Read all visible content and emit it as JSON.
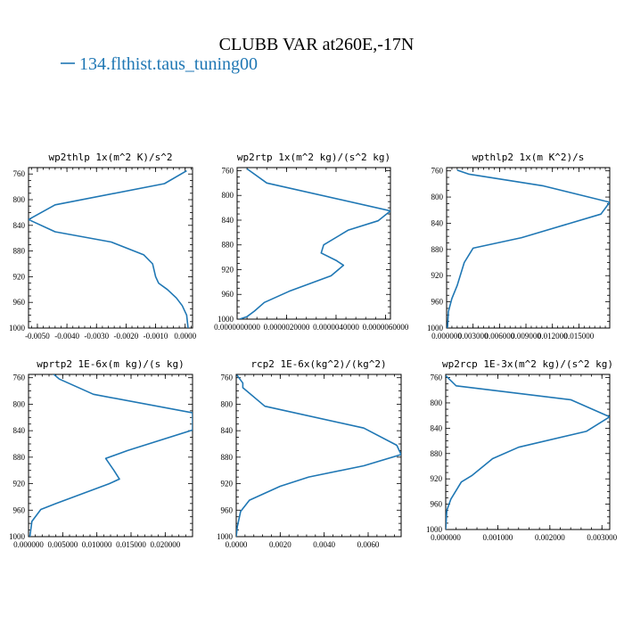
{
  "figure": {
    "title": "CLUBB VAR at260E,-17N",
    "legend_label": "134.flthist.taus_tuning00",
    "line_color": "#1f77b4"
  },
  "chart_data": [
    {
      "type": "line",
      "title": "wp2thlp  1x(m^2 K)/s^2",
      "xlim": [
        -0.0053,
        0.00025
      ],
      "ylim": [
        1000,
        750
      ],
      "xticks": [
        -0.005,
        -0.004,
        -0.003,
        -0.002,
        -0.001,
        0.0
      ],
      "xtick_labels": [
        "-0.0050",
        "-0.0040",
        "-0.0030",
        "-0.0020",
        "-0.0010",
        "0.0000"
      ],
      "yticks": [
        760,
        800,
        840,
        880,
        920,
        960,
        1000
      ],
      "series": [
        {
          "x": [
            5e-05,
            -0.0007,
            -0.0044,
            -0.0053,
            -0.0044,
            -0.0025,
            -0.0014,
            -0.0011,
            -0.001,
            -0.0009,
            -0.0006,
            -0.0003,
            -0.0001,
            5e-05,
            0.0001
          ],
          "y": [
            755,
            775,
            808,
            831,
            850,
            866,
            886,
            900,
            920,
            930,
            940,
            953,
            965,
            980,
            1000
          ]
        }
      ]
    },
    {
      "type": "line",
      "title": "wp2rtp  1x(m^2 kg)/(s^2 kg)",
      "xlim": [
        0.0,
        6.2e-06
      ],
      "ylim": [
        1000,
        755
      ],
      "xticks": [
        0.0,
        2e-06,
        4e-06,
        6e-06
      ],
      "xtick_labels": [
        "0.0000000000",
        "0.0000020000",
        "0.0000040000",
        "0.0000060000"
      ],
      "yticks": [
        760,
        800,
        840,
        880,
        920,
        960,
        1000
      ],
      "series": [
        {
          "x": [
            4e-07,
            1.2e-06,
            6.2e-06,
            5.7e-06,
            4.5e-06,
            3.5e-06,
            3.4e-06,
            4e-06,
            4.3e-06,
            3.8e-06,
            2.1e-06,
            1.1e-06,
            7e-07,
            4e-07,
            1e-07
          ],
          "y": [
            757,
            780,
            825,
            841,
            856,
            880,
            893,
            905,
            913,
            930,
            955,
            973,
            987,
            996,
            1000
          ]
        }
      ]
    },
    {
      "type": "line",
      "title": "wpthlp2  1x(m K^2)/s",
      "xlim": [
        0.0,
        0.0185
      ],
      "ylim": [
        1000,
        755
      ],
      "xticks": [
        0.0,
        0.003,
        0.006,
        0.009,
        0.012,
        0.015
      ],
      "xtick_labels": [
        "0.000000",
        "0.003000",
        "0.006000",
        "0.009000",
        "0.012000",
        "0.015000"
      ],
      "yticks": [
        760,
        800,
        840,
        880,
        920,
        960,
        1000
      ],
      "series": [
        {
          "x": [
            0.0012,
            0.0025,
            0.011,
            0.0185,
            0.0175,
            0.0085,
            0.003,
            0.002,
            0.0012,
            0.0006,
            0.0002,
            0.0001
          ],
          "y": [
            759,
            765,
            783,
            808,
            826,
            862,
            878,
            900,
            935,
            955,
            975,
            1000
          ]
        }
      ]
    },
    {
      "type": "line",
      "title": "wprtp2  1E-6x(m kg)/(s kg)",
      "xlim": [
        0.0,
        0.024
      ],
      "ylim": [
        1000,
        755
      ],
      "xticks": [
        0.0,
        0.005,
        0.01,
        0.015,
        0.02
      ],
      "xtick_labels": [
        "0.000000",
        "0.005000",
        "0.010000",
        "0.015000",
        "0.020000"
      ],
      "yticks": [
        760,
        800,
        840,
        880,
        920,
        960,
        1000
      ],
      "series": [
        {
          "x": [
            0.0036,
            0.0045,
            0.0095,
            0.024,
            0.024,
            0.0145,
            0.0113,
            0.0125,
            0.0133,
            0.0118,
            0.004,
            0.0018,
            0.0005,
            0.0002
          ],
          "y": [
            754,
            762,
            785,
            813,
            839,
            870,
            882,
            900,
            913,
            920,
            950,
            959,
            977,
            1000
          ]
        }
      ]
    },
    {
      "type": "line",
      "title": "rcp2  1E-6x(kg^2)/(kg^2)",
      "xlim": [
        0.0,
        0.0075
      ],
      "ylim": [
        1000,
        755
      ],
      "xticks": [
        0.0,
        0.002,
        0.004,
        0.006
      ],
      "xtick_labels": [
        "0.0000",
        "0.0020",
        "0.0040",
        "0.0060"
      ],
      "yticks": [
        760,
        800,
        840,
        880,
        920,
        960,
        1000
      ],
      "series": [
        {
          "x": [
            3e-05,
            0.0003,
            0.0003,
            0.0013,
            0.0058,
            0.0073,
            0.0075,
            0.0058,
            0.0033,
            0.002,
            0.0006,
            0.0002,
            5e-05,
            0.0
          ],
          "y": [
            756,
            768,
            775,
            803,
            836,
            862,
            876,
            893,
            910,
            924,
            945,
            962,
            985,
            1000
          ]
        }
      ]
    },
    {
      "type": "line",
      "title": "wp2rcp  1E-3x(m^2 kg)/(s^2 kg)",
      "xlim": [
        0.0,
        0.00315
      ],
      "ylim": [
        1000,
        755
      ],
      "xticks": [
        0.0,
        0.001,
        0.002,
        0.003
      ],
      "xtick_labels": [
        "0.000000",
        "0.001000",
        "0.002000",
        "0.003000"
      ],
      "yticks": [
        760,
        800,
        840,
        880,
        920,
        960,
        1000
      ],
      "series": [
        {
          "x": [
            0.0,
            0.0002,
            0.0024,
            0.00315,
            0.0027,
            0.0014,
            0.0009,
            0.0005,
            0.0003,
            0.0001,
            2e-05,
            0.0
          ],
          "y": [
            757,
            773,
            795,
            822,
            845,
            870,
            888,
            915,
            925,
            952,
            970,
            1000
          ]
        }
      ]
    }
  ]
}
